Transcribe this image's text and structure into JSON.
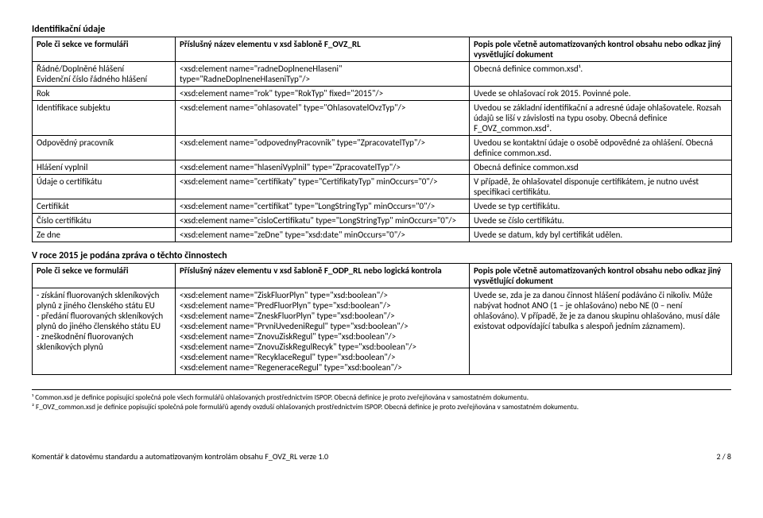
{
  "section1": {
    "title": "Identifikační údaje",
    "headers": [
      "Pole či sekce ve formuláři",
      "Příslušný název elementu v xsd šabloně F_OVZ_RL",
      "Popis pole včetně automatizovaných kontrol obsahu nebo odkaz jiný vysvětlující dokument"
    ],
    "rows": [
      [
        "Řádné/Doplněné hlášení\nEvidenční číslo řádného hlášení",
        "<xsd:element name=\"radneDoplneneHlaseni\" type=\"RadneDoplneneHlaseniTyp\"/>",
        "Obecná definice common.xsd¹."
      ],
      [
        "Rok",
        "<xsd:element name=\"rok\" type=\"RokTyp\" fixed=\"2015\"/>",
        "Uvede se ohlašovací rok 2015. Povinné pole."
      ],
      [
        "Identifikace subjektu",
        "<xsd:element name=\"ohlasovatel\" type=\"OhlasovatelOvzTyp\"/>",
        "Uvedou se základní identifikační a adresné údaje ohlašovatele. Rozsah údajů se liší v závislosti na typu osoby. Obecná definice F_OVZ_common.xsd²."
      ],
      [
        "Odpovědný pracovník",
        "<xsd:element name=\"odpovednyPracovnik\" type=\"ZpracovatelTyp\"/>",
        "Uvedou se kontaktní údaje o osobě odpovědné za ohlášení. Obecná definice common.xsd."
      ],
      [
        "Hlášení vyplnil",
        "<xsd:element name=\"hlaseniVyplnil\" type=\"ZpracovatelTyp\"/>",
        "Obecná definice common.xsd"
      ],
      [
        "Údaje o certifikátu",
        "<xsd:element name=\"certifikaty\" type=\"CertifikatyTyp\" minOccurs=\"0\"/>",
        "V případě, že ohlašovatel disponuje certifikátem, je nutno uvést specifikaci certifikátu."
      ],
      [
        "Certifikát",
        "<xsd:element name=\"certifikat\" type=\"LongStringTyp\" minOccurs=\"0\"/>",
        "Uvede se typ certifikátu."
      ],
      [
        "Číslo certifikátu",
        "<xsd:element name=\"cisloCertifikatu\" type=\"LongStringTyp\" minOccurs=\"0\"/>",
        "Uvede se číslo certifikátu."
      ],
      [
        "Ze dne",
        "<xsd:element name=\"zeDne\" type=\"xsd:date\" minOccurs=\"0\"/>",
        "Uvede se datum, kdy byl certifikát udělen."
      ]
    ]
  },
  "section2": {
    "title": "V roce 2015 je podána zpráva o těchto činnostech",
    "headers": [
      "Pole či sekce ve formuláři",
      "Příslušný název elementu v xsd šabloně F_ODP_RL nebo logická kontrola",
      "Popis pole včetně automatizovaných kontrol obsahu nebo odkaz jiný vysvětlující dokument"
    ],
    "rows": [
      [
        "- získání fluorovaných skleníkových plynů z jiného členského státu EU\n- předání fluorovaných skleníkových plynů do jiného členského státu EU\n- zneškodnění fluorovaných skleníkových plynů",
        "<xsd:element name=\"ZiskFluorPlyn\" type=\"xsd:boolean\"/>\n<xsd:element name=\"PredFluorPlyn\" type=\"xsd:boolean\"/>\n<xsd:element name=\"ZneskFluorPlyn\" type=\"xsd:boolean\"/>\n<xsd:element name=\"PrvniUvedeniRegul\" type=\"xsd:boolean\"/>\n<xsd:element name=\"ZnovuZiskRegul\" type=\"xsd:boolean\"/>\n<xsd:element name=\"ZnovuZiskRegulRecyk\" type=\"xsd:boolean\"/>\n<xsd:element name=\"RecyklaceRegul\" type=\"xsd:boolean\"/>\n<xsd:element name=\"RegeneraceRegul\" type=\"xsd:boolean\"/>",
        "Uvede se, zda je za danou činnost hlášení podáváno či nikoliv. Může nabývat hodnot ANO (1 – je ohlašováno) nebo NE (0 – není ohlašováno). V případě, že je za danou skupinu ohlašováno, musí dále existovat odpovídající tabulka s alespoň jedním záznamem)."
      ]
    ]
  },
  "footnotes": [
    "¹ Common.xsd je definice popisující společná pole všech formulářů ohlašovaných prostřednictvím ISPOP. Obecná definice je proto zveřejňována v samostatném dokumentu.",
    "² F_OVZ_common.xsd je definice popisující společná pole formulářů agendy ovzduší ohlašovaných prostřednictvím ISPOP. Obecná definice je proto zveřejňována v samostatném dokumentu."
  ],
  "footer": {
    "left": "Komentář k datovému standardu a automatizovaným kontrolám obsahu F_OVZ_RL verze 1.0",
    "right": "2 / 8"
  }
}
